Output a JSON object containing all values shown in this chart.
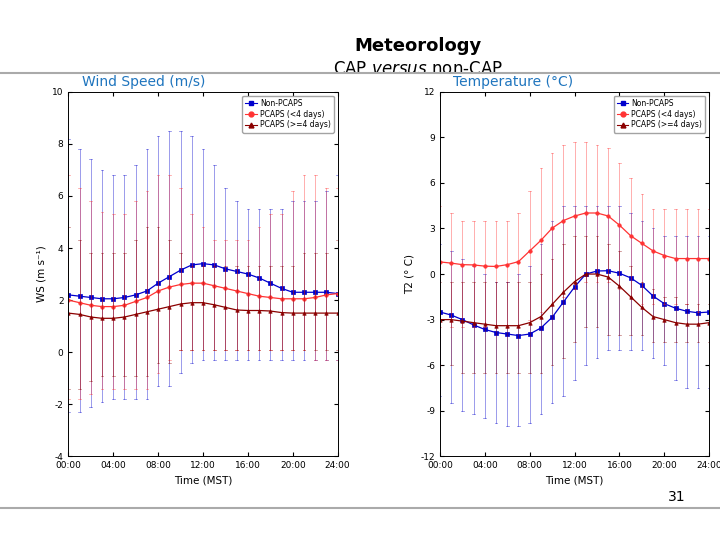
{
  "title_bold": "Meteorology",
  "title_sub": "CAP versus non-CAP",
  "panel_titles": [
    "Wind Speed (m/s)",
    "Temperature (°C)"
  ],
  "panel_title_color": "#1F75BE",
  "xlabel": "Time (MST)",
  "ws_ylabel": "WS (m s⁻¹)",
  "t2_ylabel": "T2 (° C)",
  "ws_ylim": [
    -4,
    10
  ],
  "t2_ylim": [
    -12,
    12
  ],
  "ws_yticks": [
    -4,
    -2,
    0,
    2,
    4,
    6,
    8,
    10
  ],
  "t2_yticks": [
    -12,
    -9,
    -6,
    -3,
    0,
    3,
    6,
    9,
    12
  ],
  "xtick_labels": [
    "00:00",
    "04:00",
    "08:00",
    "12:00",
    "16:00",
    "20:00",
    "24:00"
  ],
  "colors": {
    "non_pcaps": "#0000CD",
    "pcaps_lt4": "#FF3333",
    "pcaps_ge4": "#8B0000"
  },
  "legend_labels": [
    "Non-PCAPS",
    "PCAPS (<4 days)",
    "PCAPS (>=4 days)"
  ],
  "background_color": "#FFFFFF",
  "header_color": "#1F3864",
  "footer_color": "#1F3864",
  "page_number": "31",
  "time_hours": [
    0,
    1,
    2,
    3,
    4,
    5,
    6,
    7,
    8,
    9,
    10,
    11,
    12,
    13,
    14,
    15,
    16,
    17,
    18,
    19,
    20,
    21,
    22,
    23,
    24
  ],
  "ws_non_pcaps_mean": [
    2.2,
    2.15,
    2.1,
    2.05,
    2.05,
    2.1,
    2.2,
    2.35,
    2.65,
    2.9,
    3.15,
    3.35,
    3.4,
    3.35,
    3.2,
    3.1,
    3.0,
    2.85,
    2.65,
    2.45,
    2.3,
    2.3,
    2.3,
    2.3,
    2.25
  ],
  "ws_non_pcaps_upper": [
    8.2,
    7.8,
    7.4,
    7.0,
    6.8,
    6.8,
    7.2,
    7.8,
    8.3,
    8.5,
    8.5,
    8.3,
    7.8,
    7.2,
    6.3,
    5.8,
    5.5,
    5.5,
    5.5,
    5.5,
    5.8,
    5.8,
    5.8,
    6.2,
    6.8
  ],
  "ws_non_pcaps_lower": [
    -2.3,
    -2.3,
    -2.1,
    -1.9,
    -1.8,
    -1.8,
    -1.8,
    -1.8,
    -1.3,
    -1.3,
    -0.8,
    -0.4,
    -0.3,
    -0.3,
    -0.3,
    -0.3,
    -0.3,
    -0.3,
    -0.3,
    -0.3,
    -0.3,
    -0.3,
    -0.3,
    -0.3,
    -0.3
  ],
  "ws_pcaps_lt4_mean": [
    2.0,
    1.9,
    1.8,
    1.75,
    1.75,
    1.8,
    1.95,
    2.1,
    2.35,
    2.5,
    2.6,
    2.65,
    2.65,
    2.55,
    2.45,
    2.35,
    2.25,
    2.15,
    2.1,
    2.05,
    2.05,
    2.05,
    2.1,
    2.2,
    2.25
  ],
  "ws_pcaps_lt4_upper": [
    6.8,
    6.3,
    5.8,
    5.4,
    5.3,
    5.3,
    5.8,
    6.2,
    6.8,
    6.8,
    6.3,
    5.3,
    4.8,
    4.3,
    4.3,
    4.3,
    4.3,
    4.8,
    5.3,
    5.3,
    6.2,
    6.8,
    6.8,
    6.3,
    6.3
  ],
  "ws_pcaps_lt4_lower": [
    -1.8,
    -1.8,
    -1.6,
    -1.4,
    -1.4,
    -1.4,
    -1.4,
    -1.4,
    -0.8,
    -0.3,
    0.1,
    0.1,
    0.1,
    0.1,
    0.1,
    0.1,
    0.1,
    0.1,
    0.1,
    0.1,
    0.1,
    0.1,
    -0.3,
    -0.3,
    -0.3
  ],
  "ws_pcaps_ge4_mean": [
    1.5,
    1.45,
    1.35,
    1.3,
    1.3,
    1.35,
    1.45,
    1.55,
    1.65,
    1.75,
    1.85,
    1.9,
    1.9,
    1.82,
    1.72,
    1.62,
    1.6,
    1.6,
    1.58,
    1.52,
    1.5,
    1.5,
    1.5,
    1.5,
    1.5
  ],
  "ws_pcaps_ge4_upper": [
    4.8,
    4.3,
    3.8,
    3.8,
    3.8,
    3.8,
    4.3,
    4.8,
    4.8,
    4.3,
    3.8,
    3.3,
    3.3,
    3.3,
    3.3,
    3.3,
    3.3,
    3.3,
    3.3,
    3.3,
    3.3,
    3.8,
    3.8,
    3.8,
    4.3
  ],
  "ws_pcaps_ge4_lower": [
    -1.4,
    -1.4,
    -1.1,
    -0.9,
    -0.9,
    -0.9,
    -0.9,
    -0.9,
    -0.4,
    -0.4,
    0.1,
    0.1,
    0.1,
    0.1,
    0.1,
    0.1,
    0.1,
    0.1,
    0.1,
    0.1,
    0.1,
    0.1,
    0.1,
    0.1,
    0.1
  ],
  "t2_non_pcaps_mean": [
    -2.5,
    -2.7,
    -3.0,
    -3.35,
    -3.65,
    -3.85,
    -3.95,
    -4.05,
    -3.95,
    -3.55,
    -2.85,
    -1.85,
    -0.85,
    0.0,
    0.2,
    0.22,
    0.05,
    -0.25,
    -0.75,
    -1.45,
    -1.95,
    -2.25,
    -2.45,
    -2.55,
    -2.5
  ],
  "t2_non_pcaps_upper": [
    2.0,
    1.5,
    1.0,
    0.5,
    0.0,
    -0.5,
    -0.5,
    0.0,
    0.5,
    2.0,
    3.5,
    4.5,
    4.5,
    4.5,
    4.5,
    4.5,
    4.5,
    4.0,
    3.5,
    3.0,
    2.5,
    2.5,
    2.5,
    2.5,
    2.5
  ],
  "t2_non_pcaps_lower": [
    -8.0,
    -8.5,
    -9.0,
    -9.2,
    -9.5,
    -9.8,
    -10.0,
    -10.0,
    -9.8,
    -9.2,
    -8.5,
    -8.0,
    -7.0,
    -6.0,
    -5.5,
    -5.0,
    -5.0,
    -5.0,
    -5.0,
    -5.5,
    -6.0,
    -7.0,
    -7.5,
    -7.5,
    -7.5
  ],
  "t2_pcaps_lt4_mean": [
    0.8,
    0.72,
    0.62,
    0.6,
    0.52,
    0.5,
    0.62,
    0.82,
    1.52,
    2.22,
    3.02,
    3.52,
    3.82,
    4.02,
    4.02,
    3.82,
    3.22,
    2.52,
    2.02,
    1.52,
    1.22,
    1.02,
    1.02,
    1.02,
    1.02
  ],
  "t2_pcaps_lt4_upper": [
    4.5,
    4.0,
    3.5,
    3.5,
    3.5,
    3.5,
    3.5,
    4.0,
    5.5,
    7.0,
    8.0,
    8.5,
    8.7,
    8.7,
    8.5,
    8.3,
    7.3,
    6.3,
    5.3,
    4.3,
    4.3,
    4.3,
    4.3,
    4.3,
    4.3
  ],
  "t2_pcaps_lt4_lower": [
    -3.5,
    -3.5,
    -3.5,
    -3.5,
    -3.5,
    -3.5,
    -3.5,
    -3.5,
    -3.0,
    -2.5,
    -2.0,
    -1.5,
    -1.0,
    -0.5,
    -0.5,
    -0.5,
    -1.0,
    -1.5,
    -2.0,
    -2.0,
    -2.0,
    -2.0,
    -2.0,
    -2.5,
    -3.0
  ],
  "t2_pcaps_ge4_mean": [
    -3.0,
    -3.0,
    -3.1,
    -3.2,
    -3.3,
    -3.4,
    -3.4,
    -3.4,
    -3.2,
    -2.8,
    -2.0,
    -1.2,
    -0.5,
    0.0,
    0.0,
    -0.2,
    -0.8,
    -1.5,
    -2.2,
    -2.8,
    -3.0,
    -3.2,
    -3.3,
    -3.3,
    -3.2
  ],
  "t2_pcaps_ge4_upper": [
    -0.5,
    -0.5,
    -0.5,
    -0.5,
    -0.5,
    -0.5,
    -0.5,
    -0.5,
    -0.5,
    0.0,
    1.0,
    2.0,
    2.5,
    2.5,
    2.5,
    2.0,
    1.5,
    0.5,
    -0.5,
    -1.0,
    -1.5,
    -1.5,
    -2.0,
    -2.0,
    -2.0
  ],
  "t2_pcaps_ge4_lower": [
    -6.0,
    -6.0,
    -6.5,
    -6.5,
    -6.5,
    -6.5,
    -6.5,
    -6.5,
    -6.5,
    -6.5,
    -6.0,
    -5.5,
    -4.5,
    -3.5,
    -3.5,
    -4.0,
    -4.0,
    -4.0,
    -4.0,
    -4.5,
    -4.5,
    -4.5,
    -4.5,
    -4.5,
    -4.5
  ]
}
